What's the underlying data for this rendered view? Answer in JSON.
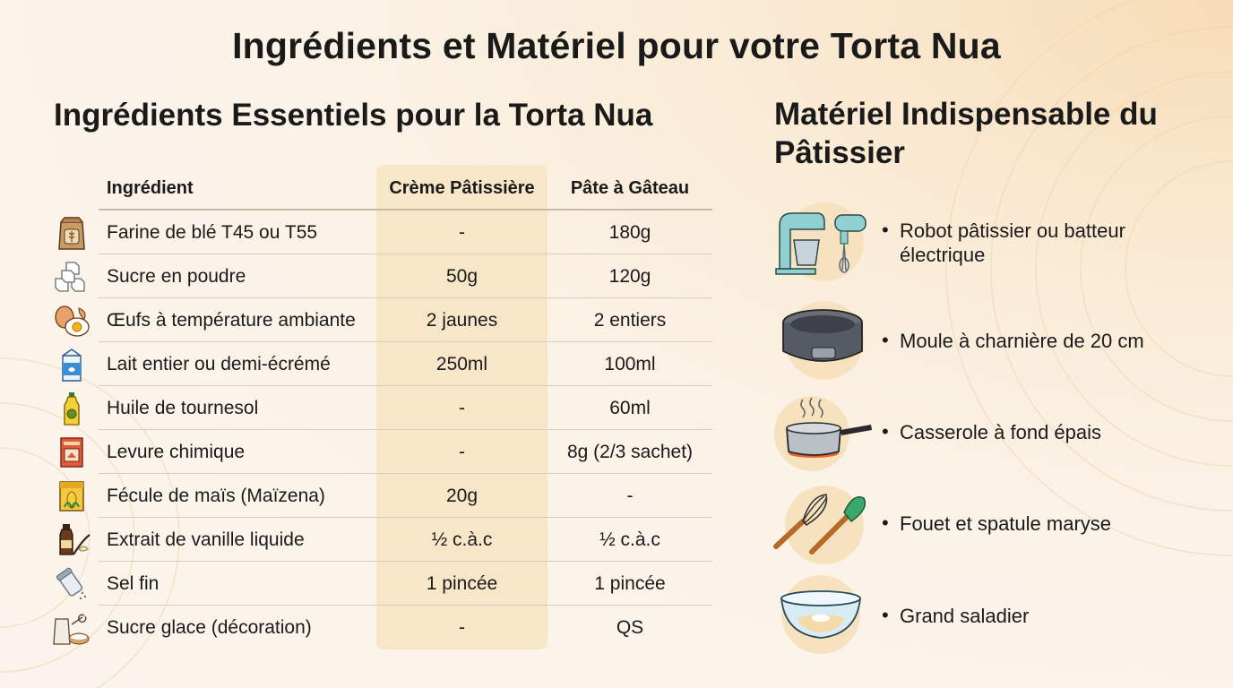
{
  "page_title": "Ingrédients et Matériel pour votre Torta Nua",
  "ingredients": {
    "title": "Ingrédients Essentiels pour la Torta Nua",
    "headers": {
      "ingredient": "Ingrédient",
      "creme": "Crème Pâtissière",
      "pate": "Pâte à Gâteau"
    },
    "rows": [
      {
        "icon": "flour-bag-icon",
        "name": "Farine de blé T45 ou T55",
        "creme": "-",
        "pate": "180g"
      },
      {
        "icon": "sugar-cubes-icon",
        "name": "Sucre en poudre",
        "creme": "50g",
        "pate": "120g"
      },
      {
        "icon": "eggs-icon",
        "name": "Œufs à température ambiante",
        "creme": "2 jaunes",
        "pate": "2 entiers"
      },
      {
        "icon": "milk-carton-icon",
        "name": "Lait entier ou demi-écrémé",
        "creme": "250ml",
        "pate": "100ml"
      },
      {
        "icon": "oil-bottle-icon",
        "name": "Huile de tournesol",
        "creme": "-",
        "pate": "60ml"
      },
      {
        "icon": "baking-powder-icon",
        "name": "Levure chimique",
        "creme": "-",
        "pate": "8g (2/3 sachet)"
      },
      {
        "icon": "cornstarch-box-icon",
        "name": "Fécule de maïs (Maïzena)",
        "creme": "20g",
        "pate": "-"
      },
      {
        "icon": "vanilla-extract-icon",
        "name": "Extrait de vanille liquide",
        "creme": "½ c.à.c",
        "pate": "½ c.à.c"
      },
      {
        "icon": "salt-shaker-icon",
        "name": "Sel fin",
        "creme": "1 pincée",
        "pate": "1 pincée"
      },
      {
        "icon": "icing-sugar-icon",
        "name": "Sucre glace (décoration)",
        "creme": "-",
        "pate": "QS"
      }
    ]
  },
  "equipment": {
    "title": "Matériel Indispensable du Pâtissier",
    "items": [
      {
        "icon": "stand-mixer-icon",
        "label": "Robot pâtissier ou batteur électrique"
      },
      {
        "icon": "springform-pan-icon",
        "label": "Moule à charnière de 20 cm"
      },
      {
        "icon": "saucepan-icon",
        "label": "Casserole à fond épais"
      },
      {
        "icon": "whisk-spatula-icon",
        "label": "Fouet et spatule maryse"
      },
      {
        "icon": "mixing-bowl-icon",
        "label": "Grand saladier"
      }
    ]
  },
  "colors": {
    "cream_column": "#f8e6c8",
    "icon_circle": "#f7e2bf",
    "text": "#1a1a1a"
  }
}
